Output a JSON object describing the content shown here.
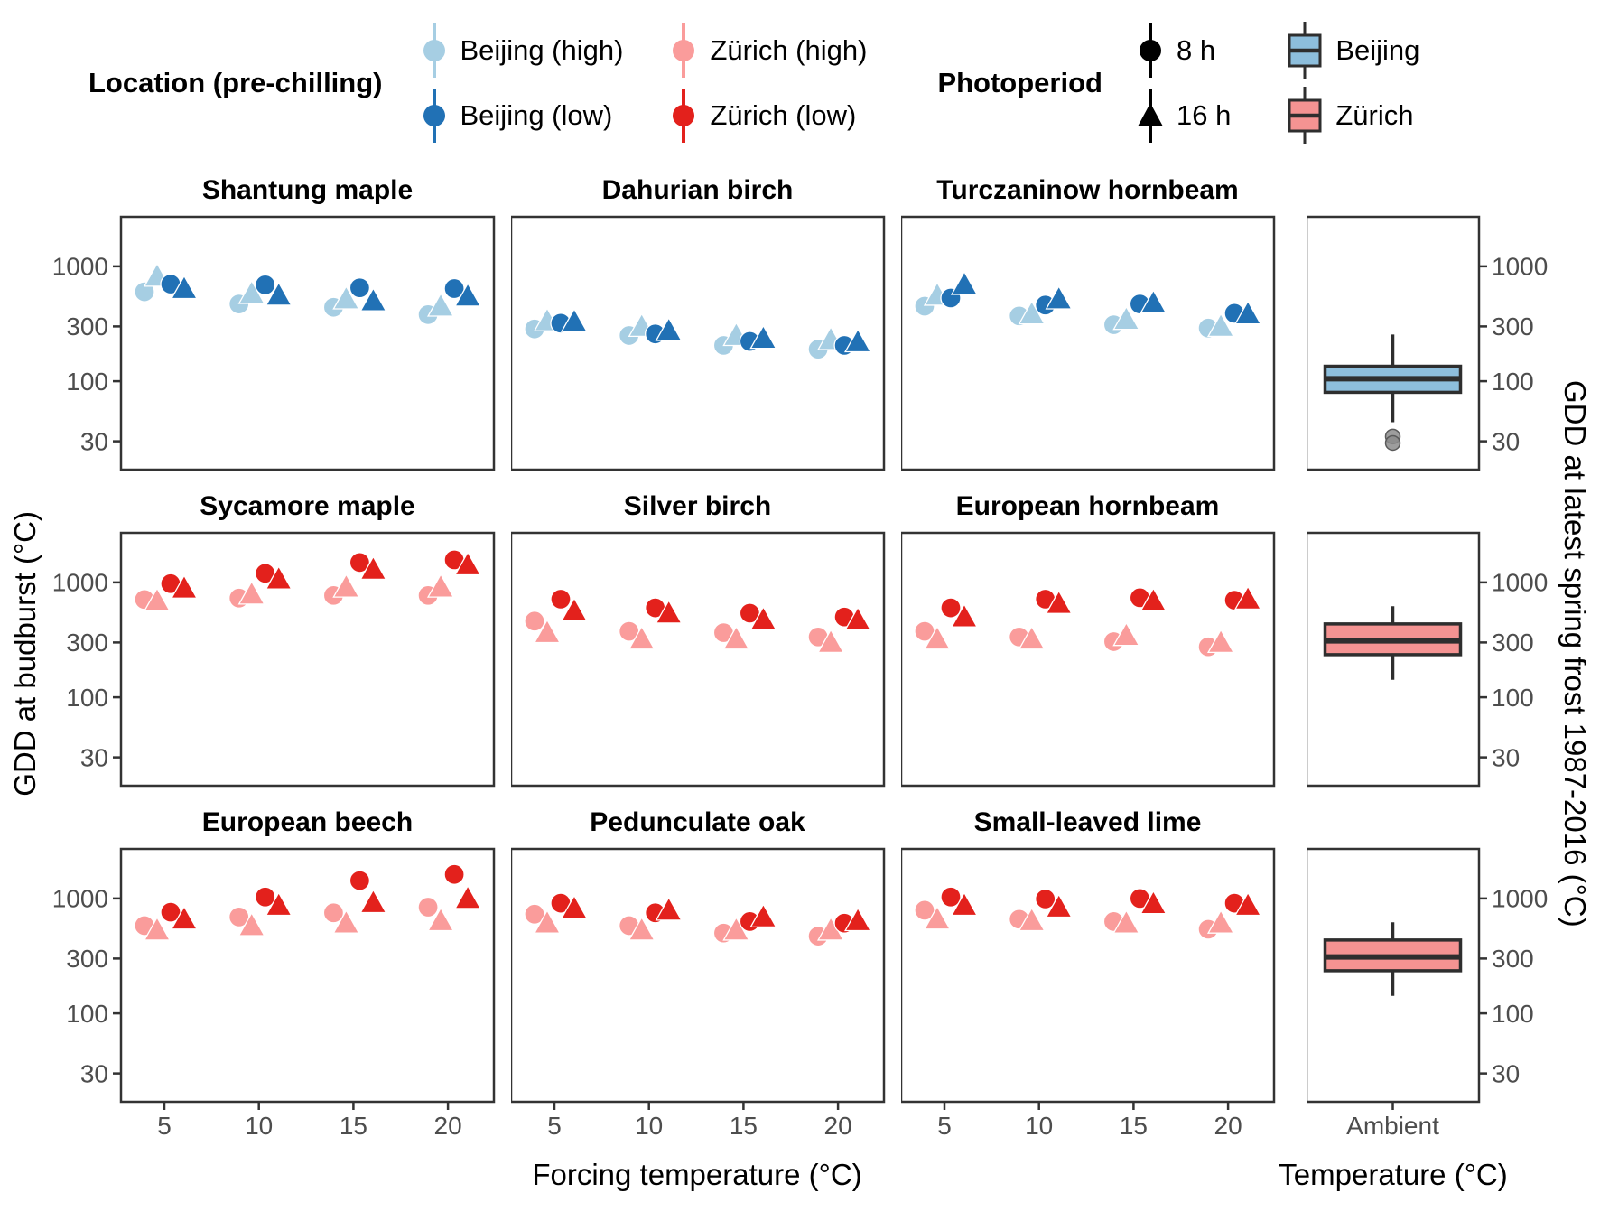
{
  "legend": {
    "location": {
      "title": "Location (pre-chilling)",
      "entries": [
        {
          "label": "Beijing (high)",
          "color": "#A6CEE3"
        },
        {
          "label": "Beijing (low)",
          "color": "#2171B5"
        },
        {
          "label": "Zürich (high)",
          "color": "#FA9C9B"
        },
        {
          "label": "Zürich (low)",
          "color": "#E3211C"
        }
      ]
    },
    "photoperiod": {
      "title": "Photoperiod",
      "entries": [
        {
          "label": "8 h",
          "shape": "circle"
        },
        {
          "label": "16 h",
          "shape": "triangle"
        }
      ]
    },
    "boxes": {
      "entries": [
        {
          "label": "Beijing",
          "color": "#8DBEDC"
        },
        {
          "label": "Zürich",
          "color": "#F49392"
        }
      ]
    }
  },
  "chart_data": {
    "type": "scatter-grid-with-boxplots",
    "y_scale": "log10",
    "y_domain": [
      17,
      2700
    ],
    "y_ticks": [
      30,
      100,
      300,
      1000
    ],
    "x_ticks": [
      5,
      10,
      15,
      20
    ],
    "x_label_scatter": "Forcing temperature (°C)",
    "x_label_box": "Temperature (°C)",
    "box_x_tick": "Ambient",
    "y_label_left": "GDD at budburst (°C)",
    "y_label_right": "GDD at latest spring frost 1987-2016 (°C)",
    "series": [
      {
        "key": "high_8h",
        "label": "high pre-chilling, 8 h",
        "chilling": "high",
        "shape": "circle"
      },
      {
        "key": "high_16h",
        "label": "high pre-chilling, 16 h",
        "chilling": "high",
        "shape": "triangle"
      },
      {
        "key": "low_8h",
        "label": "low pre-chilling, 8 h",
        "chilling": "low",
        "shape": "circle"
      },
      {
        "key": "low_16h",
        "label": "low pre-chilling, 16 h",
        "chilling": "low",
        "shape": "triangle"
      }
    ],
    "dodge": [
      -22,
      -8,
      7,
      22
    ],
    "rows": [
      {
        "location": "Beijing",
        "point_colors": {
          "high": "#A6CEE3",
          "low": "#2171B5"
        },
        "panels": [
          {
            "title": "Shantung maple",
            "series": {
              "high_8h": [
                600,
                470,
                440,
                380
              ],
              "high_16h": [
                820,
                580,
                520,
                450
              ],
              "low_8h": [
                700,
                690,
                650,
                640
              ],
              "low_16h": [
                640,
                560,
                500,
                550
              ]
            }
          },
          {
            "title": "Dahurian birch",
            "series": {
              "high_8h": [
                285,
                250,
                205,
                190
              ],
              "high_16h": [
                335,
                300,
                250,
                230
              ],
              "low_8h": [
                320,
                258,
                222,
                205
              ],
              "low_16h": [
                330,
                276,
                236,
                220
              ]
            }
          },
          {
            "title": "Turczaninow hornbeam",
            "series": {
              "high_8h": [
                450,
                370,
                310,
                290
              ],
              "high_16h": [
                560,
                385,
                345,
                300
              ],
              "low_8h": [
                530,
                460,
                470,
                390
              ],
              "low_16h": [
                695,
                520,
                480,
                385
              ]
            }
          }
        ],
        "boxplot": {
          "label": "Beijing",
          "fill": "#8DBEDC",
          "whisker_low": 44,
          "q1": 80,
          "median": 105,
          "q3": 135,
          "whisker_high": 255,
          "outliers": [
            33,
            29
          ]
        }
      },
      {
        "location": "Zürich",
        "point_colors": {
          "high": "#FA9C9B",
          "low": "#E3211C"
        },
        "panels": [
          {
            "title": "Sycamore maple",
            "series": {
              "high_8h": [
                710,
                730,
                770,
                770
              ],
              "high_16h": [
                690,
                790,
                910,
                910
              ],
              "low_8h": [
                975,
                1200,
                1490,
                1570
              ],
              "low_16h": [
                890,
                1070,
                1300,
                1420
              ]
            }
          },
          {
            "title": "Silver birch",
            "series": {
              "high_8h": [
                460,
                375,
                365,
                335
              ],
              "high_16h": [
                365,
                320,
                320,
                300
              ],
              "low_8h": [
                715,
                600,
                540,
                500
              ],
              "low_16h": [
                565,
                540,
                475,
                470
              ]
            }
          },
          {
            "title": "European hornbeam",
            "series": {
              "high_8h": [
                375,
                335,
                305,
                275
              ],
              "high_16h": [
                320,
                320,
                345,
                300
              ],
              "low_8h": [
                600,
                715,
                735,
                700
              ],
              "low_16h": [
                500,
                655,
                690,
                715
              ]
            }
          }
        ],
        "boxplot": {
          "label": "Zürich",
          "fill": "#F49392",
          "whisker_low": 142,
          "q1": 235,
          "median": 310,
          "q3": 435,
          "whisker_high": 620,
          "outliers": []
        }
      },
      {
        "location": "Zürich",
        "point_colors": {
          "high": "#FA9C9B",
          "low": "#E3211C"
        },
        "panels": [
          {
            "title": "European beech",
            "series": {
              "high_8h": [
                580,
                690,
                750,
                840
              ],
              "high_16h": [
                530,
                580,
                610,
                640
              ],
              "low_8h": [
                760,
                1030,
                1430,
                1620
              ],
              "low_16h": [
                660,
                870,
                920,
                1000
              ]
            }
          },
          {
            "title": "Pedunculate oak",
            "series": {
              "high_8h": [
                730,
                580,
                500,
                470
              ],
              "high_16h": [
                610,
                530,
                530,
                530
              ],
              "low_8h": [
                910,
                750,
                630,
                610
              ],
              "low_16h": [
                820,
                790,
                690,
                640
              ]
            }
          },
          {
            "title": "Small-leaved lime",
            "series": {
              "high_8h": [
                790,
                660,
                630,
                540
              ],
              "high_16h": [
                660,
                640,
                610,
                610
              ],
              "low_8h": [
                1030,
                990,
                1000,
                910
              ],
              "low_16h": [
                870,
                840,
                900,
                870
              ]
            }
          }
        ],
        "boxplot": {
          "label": "Zürich",
          "fill": "#F49392",
          "whisker_low": 142,
          "q1": 235,
          "median": 310,
          "q3": 435,
          "whisker_high": 620,
          "outliers": []
        }
      }
    ]
  }
}
